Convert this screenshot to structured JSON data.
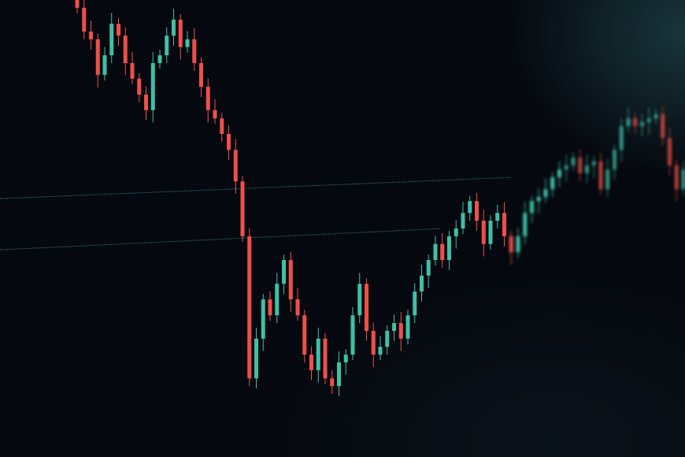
{
  "chart_data": {
    "type": "candlestick",
    "title": "",
    "xlabel": "",
    "ylabel": "",
    "grid": false,
    "colors": {
      "up": "#3fbfa6",
      "down": "#ef4f4a",
      "reference_line": "#3a8f95",
      "background": "#05090f"
    },
    "reference_levels": [
      58.6,
      47.4
    ],
    "closes": [
      98.3,
      93.1,
      91.4,
      83.6,
      87.9,
      94.8,
      92.2,
      86.2,
      82.8,
      79.3,
      75.9,
      86.2,
      87.9,
      92.2,
      95.7,
      89.7,
      91.4,
      86.2,
      81.0,
      75.9,
      74.1,
      70.7,
      67.2,
      60.3,
      48.3,
      17.2,
      25.9,
      34.5,
      31.0,
      37.9,
      43.1,
      34.5,
      31.0,
      22.4,
      19.0,
      25.9,
      17.2,
      15.5,
      20.7,
      22.4,
      31.0,
      37.9,
      27.6,
      22.4,
      24.1,
      27.6,
      29.3,
      25.9,
      31.0,
      36.2,
      39.7,
      43.1,
      46.6,
      43.1,
      48.3,
      50.0,
      53.4,
      56.0,
      51.7,
      46.6,
      51.7,
      53.4,
      48.3,
      44.8,
      48.3,
      53.4,
      56.0,
      56.9,
      58.6,
      61.2,
      62.9,
      63.8,
      65.5,
      62.1,
      63.8,
      64.7,
      58.6,
      62.9,
      67.2,
      72.4,
      74.1,
      72.4,
      73.3,
      74.1,
      75.0,
      69.8,
      63.8,
      58.6,
      62.9
    ]
  }
}
